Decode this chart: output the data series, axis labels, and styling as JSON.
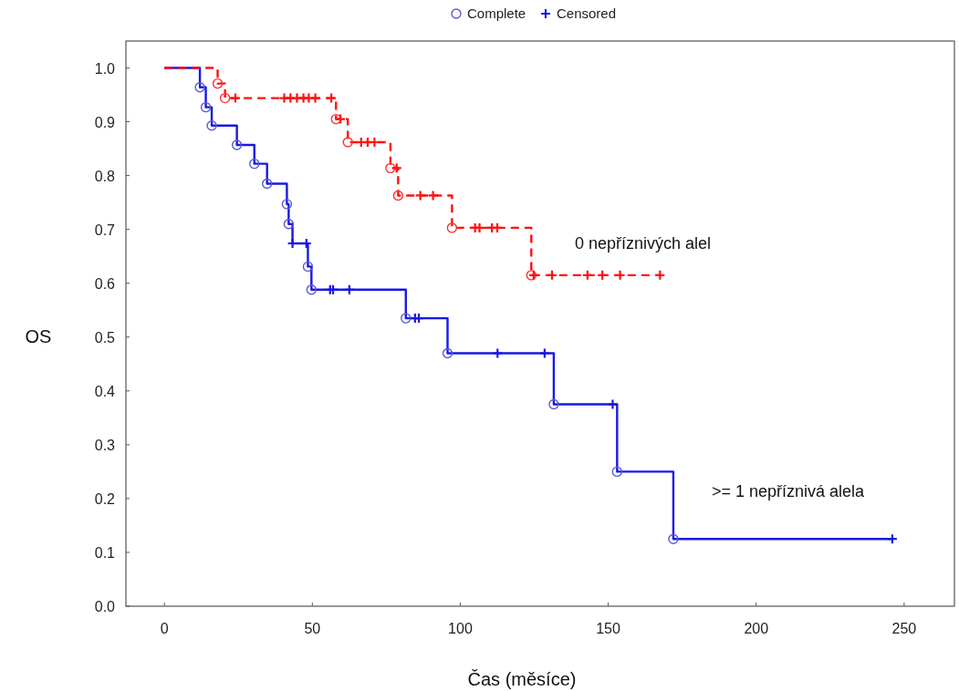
{
  "chart_data": {
    "type": "step",
    "xlabel": "Čas (měsíce)",
    "ylabel": "OS",
    "xlim": [
      -13,
      267
    ],
    "ylim": [
      0,
      1.05
    ],
    "xticks": [
      0,
      50,
      100,
      150,
      200,
      250
    ],
    "yticks": [
      {
        "value": 0,
        "label": "0.0"
      },
      {
        "value": 0.1,
        "label": "0.1"
      },
      {
        "value": 0.2,
        "label": "0.2"
      },
      {
        "value": 0.3,
        "label": "0.3"
      },
      {
        "value": 0.4,
        "label": "0.4"
      },
      {
        "value": 0.5,
        "label": "0.5"
      },
      {
        "value": 0.6,
        "label": "0.6"
      },
      {
        "value": 0.7,
        "label": "0.7"
      },
      {
        "value": 0.8,
        "label": "0.8"
      },
      {
        "value": 0.9,
        "label": "0.9"
      },
      {
        "value": 1,
        "label": "1.0"
      }
    ],
    "grid": false,
    "legend": "top",
    "series": [
      {
        "color": "#1818e6",
        "line_style": "solid",
        "marker": "none",
        "x": [
          0,
          12,
          14,
          16,
          24.5,
          30.4,
          34.7,
          41.4,
          42,
          43.3,
          48.5,
          49.7,
          81.6,
          95.7,
          131.6,
          153,
          172,
          246
        ],
        "values": [
          1,
          0.964,
          0.927,
          0.893,
          0.857,
          0.822,
          0.785,
          0.747,
          0.71,
          0.674,
          0.631,
          0.588,
          0.535,
          0.47,
          0.375,
          0.25,
          0.125,
          0.125
        ]
      },
      {
        "color": "#ff1010",
        "line_style": "dashed",
        "marker": "none",
        "x": [
          0,
          18,
          20.5,
          58,
          62,
          76.4,
          79,
          97.2,
          124,
          168
        ],
        "values": [
          1,
          0.971,
          0.944,
          0.905,
          0.862,
          0.814,
          0.763,
          0.703,
          0.615,
          0.615
        ]
      },
      {
        "type": "scatter",
        "name": "Complete",
        "color": "#5a5ad0",
        "marker": "circle",
        "x": [
          12,
          14,
          16,
          24.5,
          30.4,
          34.7,
          41.4,
          42,
          48.5,
          49.7,
          81.6,
          95.7,
          131.6,
          153,
          172,
          18,
          20.5,
          58,
          62,
          76.4,
          79,
          97.2,
          124
        ],
        "values": [
          0.964,
          0.927,
          0.893,
          0.857,
          0.822,
          0.785,
          0.747,
          0.71,
          0.631,
          0.588,
          0.535,
          0.47,
          0.375,
          0.25,
          0.125,
          0.971,
          0.944,
          0.905,
          0.862,
          0.814,
          0.763,
          0.703,
          0.615
        ],
        "colors": [
          "#5a5ad0",
          "#5a5ad0",
          "#5a5ad0",
          "#5a5ad0",
          "#5a5ad0",
          "#5a5ad0",
          "#5a5ad0",
          "#5a5ad0",
          "#5a5ad0",
          "#5a5ad0",
          "#5a5ad0",
          "#5a5ad0",
          "#5a5ad0",
          "#5a5ad0",
          "#5a5ad0",
          "#ff3030",
          "#ff3030",
          "#ff3030",
          "#ff3030",
          "#ff3030",
          "#ff3030",
          "#ff3030",
          "#ff3030"
        ]
      },
      {
        "type": "scatter",
        "name": "Censored",
        "color": "#1818e6",
        "marker": "cross",
        "x": [
          43.3,
          48,
          56,
          57,
          62.5,
          84.7,
          86,
          112.6,
          128.5,
          151.5,
          246,
          24,
          40.5,
          42.6,
          44.8,
          47,
          48.8,
          51,
          56.4,
          59.5,
          66.5,
          68.7,
          71,
          78.5,
          86.5,
          90.8,
          105,
          106.5,
          110.7,
          112.5,
          124.8,
          131,
          143,
          148,
          154,
          167.5
        ],
        "values": [
          0.674,
          0.674,
          0.588,
          0.588,
          0.588,
          0.535,
          0.535,
          0.47,
          0.47,
          0.375,
          0.125,
          0.944,
          0.944,
          0.944,
          0.944,
          0.944,
          0.944,
          0.944,
          0.944,
          0.905,
          0.862,
          0.862,
          0.862,
          0.814,
          0.763,
          0.763,
          0.703,
          0.703,
          0.703,
          0.703,
          0.615,
          0.615,
          0.615,
          0.615,
          0.615,
          0.615
        ],
        "colors": [
          "#1818e6",
          "#1818e6",
          "#1818e6",
          "#1818e6",
          "#1818e6",
          "#1818e6",
          "#1818e6",
          "#1818e6",
          "#1818e6",
          "#1818e6",
          "#1818e6",
          "#ff1010",
          "#ff1010",
          "#ff1010",
          "#ff1010",
          "#ff1010",
          "#ff1010",
          "#ff1010",
          "#ff1010",
          "#ff1010",
          "#ff1010",
          "#ff1010",
          "#ff1010",
          "#ff1010",
          "#ff1010",
          "#ff1010",
          "#ff1010",
          "#ff1010",
          "#ff1010",
          "#ff1010",
          "#ff1010",
          "#ff1010",
          "#ff1010",
          "#ff1010",
          "#ff1010",
          "#ff1010"
        ]
      }
    ],
    "annotations": [
      "0 nepříznivých alel",
      ">= 1 nepříznivá alela"
    ]
  }
}
